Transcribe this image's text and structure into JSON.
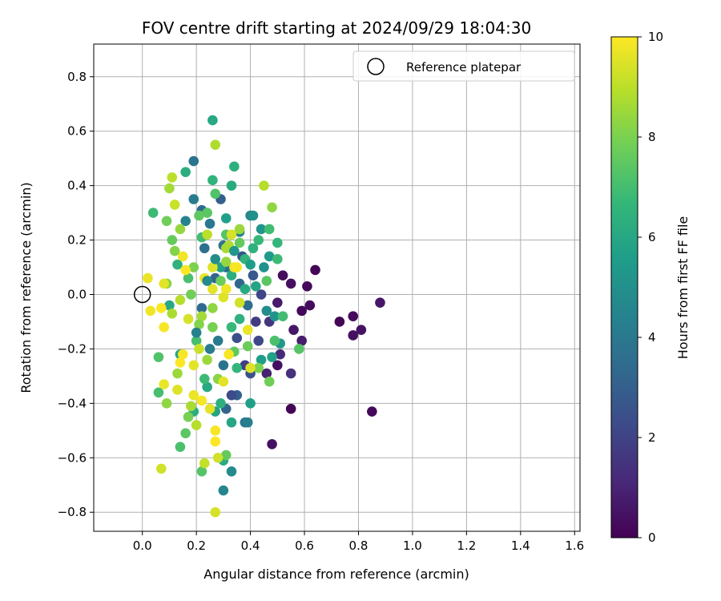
{
  "chart_data": {
    "type": "scatter",
    "title": "FOV centre drift starting at 2024/09/29 18:04:30",
    "xlabel": "Angular distance from reference (arcmin)",
    "ylabel": "Rotation from reference (arcmin)",
    "xlim": [
      -0.18,
      1.62
    ],
    "ylim": [
      -0.87,
      0.92
    ],
    "xticks": [
      0.0,
      0.2,
      0.4,
      0.6,
      0.8,
      1.0,
      1.2,
      1.4,
      1.6
    ],
    "yticks": [
      -0.8,
      -0.6,
      -0.4,
      -0.2,
      0.0,
      0.2,
      0.4,
      0.6,
      0.8
    ],
    "xtick_labels": [
      "0.0",
      "0.2",
      "0.4",
      "0.6",
      "0.8",
      "1.0",
      "1.2",
      "1.4",
      "1.6"
    ],
    "ytick_labels": [
      "−0.8",
      "−0.6",
      "−0.4",
      "−0.2",
      "0.0",
      "0.2",
      "0.4",
      "0.6",
      "0.8"
    ],
    "grid": true,
    "legend": {
      "position": "top-right",
      "entries": [
        "Reference platepar"
      ]
    },
    "reference_point": {
      "name": "Reference platepar",
      "x": 0.0,
      "y": 0.0
    },
    "colorbar": {
      "label": "Hours from first FF file",
      "min": 0,
      "max": 10,
      "ticks": [
        0,
        2,
        4,
        6,
        8,
        10
      ],
      "tick_labels": [
        "0",
        "2",
        "4",
        "6",
        "8",
        "10"
      ],
      "colormap": "viridis",
      "colors": [
        "#440154",
        "#482878",
        "#3e4989",
        "#31688e",
        "#26828e",
        "#1f9e89",
        "#35b779",
        "#6ece58",
        "#b5de2b",
        "#fde725"
      ]
    },
    "points": [
      [
        0.64,
        0.09,
        0.1
      ],
      [
        0.61,
        0.03,
        0.2
      ],
      [
        0.52,
        0.07,
        0.3
      ],
      [
        0.55,
        0.04,
        0.4
      ],
      [
        0.59,
        -0.06,
        0.2
      ],
      [
        0.62,
        -0.04,
        0.3
      ],
      [
        0.73,
        -0.1,
        0.1
      ],
      [
        0.78,
        -0.08,
        0.3
      ],
      [
        0.81,
        -0.13,
        0.5
      ],
      [
        0.78,
        -0.15,
        0.4
      ],
      [
        0.88,
        -0.03,
        0.6
      ],
      [
        0.85,
        -0.43,
        0.2
      ],
      [
        0.55,
        -0.42,
        0.1
      ],
      [
        0.48,
        -0.55,
        0.4
      ],
      [
        0.5,
        -0.26,
        0.4
      ],
      [
        0.56,
        -0.13,
        0.6
      ],
      [
        0.59,
        -0.17,
        0.8
      ],
      [
        0.55,
        -0.29,
        1.4
      ],
      [
        0.51,
        -0.22,
        1.2
      ],
      [
        0.46,
        -0.29,
        0.9
      ],
      [
        0.5,
        -0.03,
        0.7
      ],
      [
        0.47,
        -0.1,
        1.5
      ],
      [
        0.42,
        -0.1,
        1.8
      ],
      [
        0.43,
        -0.17,
        2.2
      ],
      [
        0.4,
        -0.29,
        2.5
      ],
      [
        0.38,
        -0.26,
        1.9
      ],
      [
        0.44,
        0.0,
        2.1
      ],
      [
        0.41,
        0.07,
        2.8
      ],
      [
        0.37,
        0.14,
        2.7
      ],
      [
        0.35,
        -0.37,
        3.0
      ],
      [
        0.33,
        -0.37,
        2.3
      ],
      [
        0.31,
        -0.42,
        3.2
      ],
      [
        0.35,
        -0.16,
        2.4
      ],
      [
        0.36,
        0.04,
        3.3
      ],
      [
        0.39,
        -0.04,
        3.6
      ],
      [
        0.31,
        0.1,
        3.5
      ],
      [
        0.3,
        0.18,
        3.9
      ],
      [
        0.29,
        0.35,
        3.0
      ],
      [
        0.22,
        0.31,
        3.4
      ],
      [
        0.19,
        0.49,
        3.8
      ],
      [
        0.19,
        0.35,
        4.2
      ],
      [
        0.16,
        0.27,
        4.5
      ],
      [
        0.23,
        0.17,
        3.7
      ],
      [
        0.25,
        0.26,
        4.0
      ],
      [
        0.27,
        0.06,
        3.2
      ],
      [
        0.22,
        -0.05,
        3.4
      ],
      [
        0.28,
        -0.17,
        4.1
      ],
      [
        0.3,
        -0.26,
        3.8
      ],
      [
        0.38,
        -0.47,
        4.0
      ],
      [
        0.3,
        -0.72,
        4.6
      ],
      [
        0.33,
        -0.65,
        4.8
      ],
      [
        0.39,
        -0.47,
        4.3
      ],
      [
        0.36,
        0.23,
        4.4
      ],
      [
        0.4,
        0.29,
        4.6
      ],
      [
        0.41,
        0.29,
        5.0
      ],
      [
        0.44,
        0.24,
        5.2
      ],
      [
        0.45,
        0.1,
        5.0
      ],
      [
        0.47,
        0.14,
        5.4
      ],
      [
        0.46,
        -0.06,
        4.9
      ],
      [
        0.49,
        -0.08,
        5.1
      ],
      [
        0.51,
        -0.18,
        5.3
      ],
      [
        0.48,
        -0.23,
        5.7
      ],
      [
        0.44,
        -0.24,
        5.5
      ],
      [
        0.4,
        -0.4,
        5.6
      ],
      [
        0.33,
        -0.47,
        5.9
      ],
      [
        0.3,
        -0.61,
        6.1
      ],
      [
        0.27,
        -0.43,
        5.8
      ],
      [
        0.24,
        -0.34,
        6.0
      ],
      [
        0.19,
        -0.43,
        6.2
      ],
      [
        0.14,
        -0.22,
        5.9
      ],
      [
        0.1,
        -0.04,
        6.0
      ],
      [
        0.13,
        0.11,
        6.4
      ],
      [
        0.16,
        0.45,
        6.2
      ],
      [
        0.26,
        0.64,
        6.0
      ],
      [
        0.34,
        0.47,
        6.3
      ],
      [
        0.33,
        0.4,
        6.1
      ],
      [
        0.26,
        0.42,
        6.5
      ],
      [
        0.31,
        0.28,
        5.6
      ],
      [
        0.29,
        0.1,
        5.7
      ],
      [
        0.33,
        0.07,
        6.2
      ],
      [
        0.41,
        0.17,
        6.4
      ],
      [
        0.5,
        0.19,
        6.6
      ],
      [
        0.5,
        0.13,
        6.8
      ],
      [
        0.47,
        0.24,
        6.9
      ],
      [
        0.43,
        0.2,
        6.7
      ],
      [
        0.38,
        0.13,
        6.5
      ],
      [
        0.52,
        -0.08,
        6.9
      ],
      [
        0.58,
        -0.2,
        7.3
      ],
      [
        0.49,
        -0.17,
        7.1
      ],
      [
        0.35,
        -0.27,
        6.6
      ],
      [
        0.29,
        -0.4,
        6.3
      ],
      [
        0.23,
        -0.31,
        6.8
      ],
      [
        0.2,
        -0.17,
        7.0
      ],
      [
        0.17,
        0.06,
        7.1
      ],
      [
        0.22,
        0.21,
        6.9
      ],
      [
        0.24,
        0.3,
        7.4
      ],
      [
        0.27,
        0.37,
        7.2
      ],
      [
        0.21,
        0.29,
        7.5
      ],
      [
        0.31,
        0.22,
        7.3
      ],
      [
        0.36,
        0.19,
        7.6
      ],
      [
        0.46,
        0.05,
        7.4
      ],
      [
        0.47,
        -0.32,
        7.8
      ],
      [
        0.43,
        -0.27,
        8.0
      ],
      [
        0.39,
        -0.19,
        7.7
      ],
      [
        0.34,
        -0.21,
        7.5
      ],
      [
        0.31,
        -0.59,
        7.6
      ],
      [
        0.22,
        -0.65,
        7.3
      ],
      [
        0.14,
        -0.56,
        7.1
      ],
      [
        0.16,
        -0.51,
        7.4
      ],
      [
        0.17,
        -0.45,
        7.9
      ],
      [
        0.06,
        -0.36,
        7.0
      ],
      [
        0.06,
        -0.23,
        7.2
      ],
      [
        0.04,
        0.3,
        6.8
      ],
      [
        0.09,
        0.27,
        7.8
      ],
      [
        0.09,
        0.04,
        8.2
      ],
      [
        0.14,
        0.24,
        8.4
      ],
      [
        0.12,
        0.16,
        8.1
      ],
      [
        0.19,
        0.1,
        8.0
      ],
      [
        0.22,
        -0.08,
        8.6
      ],
      [
        0.24,
        -0.24,
        8.5
      ],
      [
        0.26,
        -0.12,
        7.9
      ],
      [
        0.28,
        -0.31,
        8.2
      ],
      [
        0.31,
        0.12,
        8.4
      ],
      [
        0.32,
        0.18,
        8.8
      ],
      [
        0.36,
        0.24,
        8.5
      ],
      [
        0.45,
        0.4,
        8.9
      ],
      [
        0.48,
        0.32,
        8.3
      ],
      [
        0.31,
        0.17,
        8.7
      ],
      [
        0.27,
        0.55,
        8.8
      ],
      [
        0.24,
        0.22,
        9.0
      ],
      [
        0.11,
        0.43,
        9.0
      ],
      [
        0.1,
        0.39,
        8.6
      ],
      [
        0.12,
        0.33,
        9.2
      ],
      [
        0.14,
        -0.02,
        8.9
      ],
      [
        0.11,
        -0.07,
        8.7
      ],
      [
        0.09,
        -0.4,
        8.3
      ],
      [
        0.13,
        -0.29,
        8.5
      ],
      [
        0.18,
        -0.41,
        8.7
      ],
      [
        0.2,
        -0.48,
        8.9
      ],
      [
        0.23,
        -0.62,
        9.1
      ],
      [
        0.28,
        -0.6,
        9.3
      ],
      [
        0.21,
        -0.2,
        9.2
      ],
      [
        0.17,
        -0.09,
        9.4
      ],
      [
        0.26,
        0.02,
        9.6
      ],
      [
        0.3,
        -0.01,
        9.5
      ],
      [
        0.34,
        0.1,
        9.8
      ],
      [
        0.36,
        -0.03,
        9.3
      ],
      [
        0.39,
        -0.13,
        9.7
      ],
      [
        0.4,
        -0.27,
        9.5
      ],
      [
        0.32,
        -0.22,
        9.9
      ],
      [
        0.3,
        -0.32,
        9.6
      ],
      [
        0.27,
        -0.5,
        9.9
      ],
      [
        0.27,
        -0.54,
        10.0
      ],
      [
        0.27,
        -0.8,
        9.4
      ],
      [
        0.07,
        -0.64,
        9.3
      ],
      [
        0.08,
        -0.33,
        9.7
      ],
      [
        0.08,
        -0.12,
        9.9
      ],
      [
        0.07,
        -0.05,
        10.0
      ],
      [
        0.03,
        -0.06,
        9.8
      ],
      [
        0.02,
        0.06,
        9.7
      ],
      [
        0.08,
        0.04,
        9.6
      ],
      [
        0.15,
        0.14,
        9.8
      ],
      [
        0.16,
        0.09,
        10.0
      ],
      [
        0.23,
        0.06,
        9.7
      ],
      [
        0.26,
        0.1,
        9.5
      ],
      [
        0.33,
        0.22,
        9.4
      ],
      [
        0.35,
        0.1,
        9.9
      ],
      [
        0.31,
        0.02,
        9.8
      ],
      [
        0.19,
        -0.26,
        9.6
      ],
      [
        0.15,
        -0.22,
        9.9
      ],
      [
        0.14,
        -0.25,
        10.0
      ],
      [
        0.13,
        -0.35,
        9.5
      ],
      [
        0.19,
        -0.37,
        9.7
      ],
      [
        0.22,
        -0.39,
        9.9
      ],
      [
        0.25,
        -0.42,
        9.6
      ],
      [
        0.11,
        0.2,
        7.6
      ],
      [
        0.18,
        0.0,
        7.8
      ],
      [
        0.21,
        -0.11,
        8.1
      ],
      [
        0.26,
        -0.05,
        8.3
      ],
      [
        0.29,
        0.05,
        7.7
      ],
      [
        0.33,
        -0.12,
        6.7
      ],
      [
        0.36,
        -0.09,
        6.4
      ],
      [
        0.38,
        0.02,
        6.1
      ],
      [
        0.42,
        0.03,
        5.8
      ],
      [
        0.4,
        0.11,
        5.5
      ],
      [
        0.34,
        0.16,
        5.3
      ],
      [
        0.27,
        0.13,
        4.9
      ],
      [
        0.24,
        0.05,
        4.7
      ],
      [
        0.2,
        -0.14,
        4.4
      ],
      [
        0.25,
        -0.2,
        4.2
      ]
    ]
  }
}
